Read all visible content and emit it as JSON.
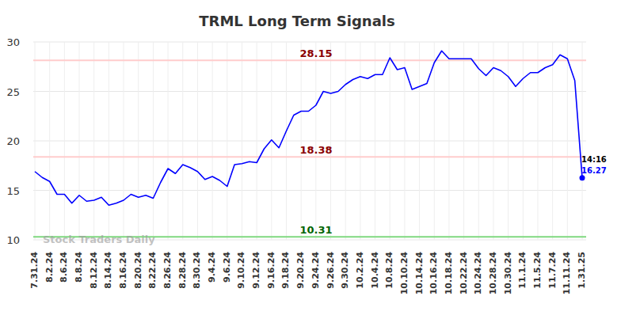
{
  "chart_data": {
    "type": "line",
    "title": "TRML Long Term Signals",
    "watermark": "Stock Traders Daily",
    "categories": [
      "7.31.24",
      null,
      "8.2.24",
      null,
      "8.6.24",
      null,
      "8.8.24",
      null,
      "8.12.24",
      null,
      "8.14.24",
      null,
      "8.16.24",
      null,
      "8.20.24",
      null,
      "8.22.24",
      null,
      "8.26.24",
      null,
      "8.28.24",
      null,
      "8.30.24",
      null,
      "9.4.24",
      null,
      "9.6.24",
      null,
      "9.10.24",
      null,
      "9.12.24",
      null,
      "9.16.24",
      null,
      "9.18.24",
      null,
      "9.20.24",
      null,
      "9.24.24",
      null,
      "9.26.24",
      null,
      "9.30.24",
      null,
      "10.2.24",
      null,
      "10.4.24",
      null,
      "10.8.24",
      null,
      "10.10.24",
      null,
      "10.14.24",
      null,
      "10.16.24",
      null,
      "10.18.24",
      null,
      "10.22.24",
      null,
      "10.24.24",
      null,
      "10.28.24",
      null,
      "10.30.24",
      null,
      "11.1.24",
      null,
      "11.5.24",
      null,
      "11.7.24",
      null,
      "11.11.24",
      null,
      "1.31.25"
    ],
    "values": [
      16.9,
      16.3,
      15.9,
      14.6,
      14.6,
      13.7,
      14.5,
      13.9,
      14.0,
      14.3,
      13.5,
      13.7,
      14.0,
      14.6,
      14.3,
      14.5,
      14.2,
      15.8,
      17.2,
      16.7,
      17.6,
      17.3,
      16.9,
      16.1,
      16.4,
      16.0,
      15.4,
      17.6,
      17.7,
      17.9,
      17.8,
      19.2,
      20.1,
      19.3,
      21.0,
      22.6,
      23.0,
      23.0,
      23.6,
      25.0,
      24.8,
      25.0,
      25.7,
      26.2,
      26.5,
      26.3,
      26.7,
      26.7,
      28.4,
      27.2,
      27.4,
      25.2,
      25.5,
      25.8,
      27.9,
      29.1,
      28.3,
      28.3,
      28.3,
      28.3,
      27.3,
      26.6,
      27.4,
      27.1,
      26.5,
      25.5,
      26.3,
      26.9,
      26.9,
      27.4,
      27.7,
      28.7,
      28.3,
      26.1,
      16.27
    ],
    "color": "#0000ff",
    "marker": "last",
    "last_point_time": "14:16",
    "reference_lines": [
      {
        "value": 28.15,
        "label": "28.15",
        "color": "#ffcccc",
        "label_color": "#8b0000"
      },
      {
        "value": 18.38,
        "label": "18.38",
        "color": "#ffcccc",
        "label_color": "#8b0000"
      },
      {
        "value": 10.31,
        "label": "10.31",
        "color": "#7fd87f",
        "label_color": "#006400"
      }
    ],
    "ylim": [
      10,
      30
    ],
    "yticks": [
      10,
      15,
      20,
      25,
      30
    ],
    "grid": true
  }
}
